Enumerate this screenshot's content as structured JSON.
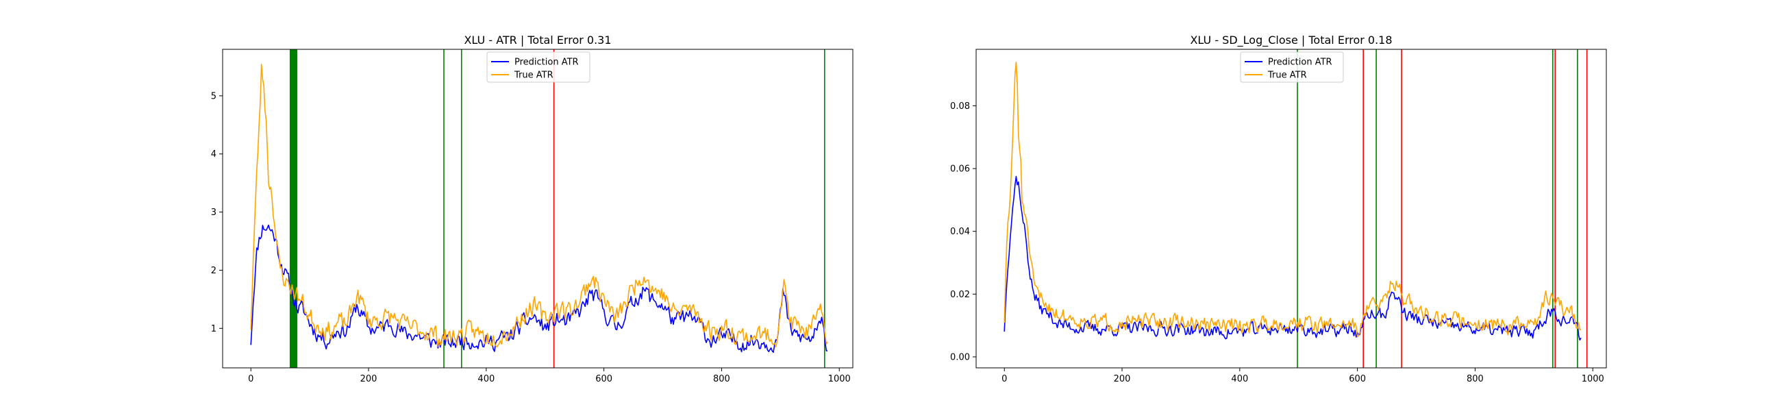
{
  "chart_data": [
    {
      "type": "line",
      "title": "XLU - ATR | Total Error 0.31",
      "xlabel": "",
      "ylabel": "",
      "xlim": [
        -48,
        1023
      ],
      "ylim": [
        0.32,
        5.8
      ],
      "x_ticks": [
        0,
        200,
        400,
        600,
        800,
        1000
      ],
      "y_ticks": [
        1,
        2,
        3,
        4,
        5
      ],
      "legend": {
        "position": "top-center"
      },
      "series": [
        {
          "name": "Prediction ATR",
          "color": "#0000ff",
          "anchors": [
            [
              0,
              0.78
            ],
            [
              5,
              1.7
            ],
            [
              10,
              2.3
            ],
            [
              15,
              2.6
            ],
            [
              20,
              2.75
            ],
            [
              30,
              2.75
            ],
            [
              40,
              2.6
            ],
            [
              50,
              2.2
            ],
            [
              60,
              1.9
            ],
            [
              70,
              1.6
            ],
            [
              80,
              1.35
            ],
            [
              90,
              1.3
            ],
            [
              100,
              1.1
            ],
            [
              110,
              0.95
            ],
            [
              120,
              0.85
            ],
            [
              130,
              0.8
            ],
            [
              140,
              0.9
            ],
            [
              150,
              1.0
            ],
            [
              160,
              0.95
            ],
            [
              170,
              1.1
            ],
            [
              180,
              1.4
            ],
            [
              190,
              1.2
            ],
            [
              200,
              1.0
            ],
            [
              220,
              1.0
            ],
            [
              240,
              1.1
            ],
            [
              260,
              0.9
            ],
            [
              280,
              0.9
            ],
            [
              300,
              0.8
            ],
            [
              320,
              0.75
            ],
            [
              340,
              0.75
            ],
            [
              360,
              0.8
            ],
            [
              380,
              0.8
            ],
            [
              400,
              0.75
            ],
            [
              420,
              0.8
            ],
            [
              440,
              0.85
            ],
            [
              460,
              1.05
            ],
            [
              480,
              1.2
            ],
            [
              500,
              1.0
            ],
            [
              520,
              1.15
            ],
            [
              540,
              1.1
            ],
            [
              560,
              1.3
            ],
            [
              580,
              1.6
            ],
            [
              600,
              1.3
            ],
            [
              620,
              1.0
            ],
            [
              640,
              1.3
            ],
            [
              660,
              1.6
            ],
            [
              670,
              1.65
            ],
            [
              680,
              1.5
            ],
            [
              700,
              1.4
            ],
            [
              720,
              1.1
            ],
            [
              740,
              1.2
            ],
            [
              760,
              1.1
            ],
            [
              780,
              0.8
            ],
            [
              800,
              0.85
            ],
            [
              820,
              0.8
            ],
            [
              840,
              0.75
            ],
            [
              860,
              0.8
            ],
            [
              880,
              0.75
            ],
            [
              895,
              0.8
            ],
            [
              905,
              1.65
            ],
            [
              915,
              1.0
            ],
            [
              930,
              0.85
            ],
            [
              950,
              0.8
            ],
            [
              970,
              1.05
            ],
            [
              980,
              0.7
            ]
          ],
          "amplitude": 0.17,
          "seed": 11,
          "x_range": [
            0,
            980
          ]
        },
        {
          "name": "True ATR",
          "color": "#ffa500",
          "anchors": [
            [
              0,
              1.05
            ],
            [
              5,
              2.5
            ],
            [
              10,
              3.6
            ],
            [
              15,
              4.7
            ],
            [
              18,
              5.45
            ],
            [
              22,
              5.2
            ],
            [
              27,
              4.4
            ],
            [
              30,
              3.6
            ],
            [
              35,
              3.4
            ],
            [
              40,
              2.9
            ],
            [
              45,
              2.3
            ],
            [
              50,
              2.0
            ],
            [
              60,
              1.8
            ],
            [
              70,
              1.7
            ],
            [
              80,
              1.55
            ],
            [
              90,
              1.4
            ],
            [
              100,
              1.2
            ],
            [
              110,
              1.1
            ],
            [
              120,
              1.05
            ],
            [
              130,
              0.95
            ],
            [
              140,
              1.0
            ],
            [
              150,
              1.1
            ],
            [
              160,
              1.05
            ],
            [
              170,
              1.25
            ],
            [
              180,
              1.6
            ],
            [
              190,
              1.4
            ],
            [
              200,
              1.15
            ],
            [
              220,
              1.15
            ],
            [
              240,
              1.2
            ],
            [
              260,
              1.05
            ],
            [
              280,
              1.0
            ],
            [
              300,
              0.95
            ],
            [
              320,
              0.85
            ],
            [
              340,
              0.85
            ],
            [
              360,
              0.9
            ],
            [
              380,
              0.95
            ],
            [
              400,
              0.85
            ],
            [
              420,
              0.9
            ],
            [
              440,
              0.95
            ],
            [
              460,
              1.2
            ],
            [
              480,
              1.4
            ],
            [
              500,
              1.15
            ],
            [
              520,
              1.35
            ],
            [
              540,
              1.3
            ],
            [
              560,
              1.5
            ],
            [
              580,
              1.9
            ],
            [
              600,
              1.5
            ],
            [
              620,
              1.15
            ],
            [
              640,
              1.5
            ],
            [
              660,
              1.9
            ],
            [
              670,
              1.95
            ],
            [
              680,
              1.7
            ],
            [
              700,
              1.6
            ],
            [
              720,
              1.25
            ],
            [
              740,
              1.35
            ],
            [
              760,
              1.25
            ],
            [
              780,
              0.95
            ],
            [
              800,
              1.0
            ],
            [
              820,
              0.95
            ],
            [
              840,
              0.85
            ],
            [
              860,
              0.9
            ],
            [
              880,
              0.85
            ],
            [
              895,
              0.9
            ],
            [
              905,
              1.85
            ],
            [
              915,
              1.15
            ],
            [
              930,
              1.0
            ],
            [
              950,
              0.95
            ],
            [
              970,
              1.25
            ],
            [
              980,
              0.8
            ]
          ],
          "amplitude": 0.2,
          "seed": 23,
          "x_range": [
            0,
            980
          ]
        }
      ],
      "vlines": [
        {
          "x": 66,
          "x2": 79,
          "color": "#008000"
        },
        {
          "x": 328,
          "color": "#008000"
        },
        {
          "x": 358,
          "color": "#008000"
        },
        {
          "x": 515,
          "color": "#ff0000"
        },
        {
          "x": 975,
          "color": "#008000"
        }
      ]
    },
    {
      "type": "line",
      "title": "XLU - SD_Log_Close | Total Error 0.18",
      "xlabel": "",
      "ylabel": "",
      "xlim": [
        -48,
        1023
      ],
      "ylim": [
        -0.0035,
        0.098
      ],
      "x_ticks": [
        0,
        200,
        400,
        600,
        800,
        1000
      ],
      "y_ticks": [
        0.0,
        0.02,
        0.04,
        0.06,
        0.08
      ],
      "y_tick_format": "0.00",
      "legend": {
        "position": "top-center"
      },
      "series": [
        {
          "name": "Prediction ATR",
          "color": "#0000ff",
          "anchors": [
            [
              0,
              0.009
            ],
            [
              5,
              0.028
            ],
            [
              10,
              0.04
            ],
            [
              15,
              0.05
            ],
            [
              20,
              0.057
            ],
            [
              25,
              0.055
            ],
            [
              30,
              0.045
            ],
            [
              35,
              0.04
            ],
            [
              40,
              0.032
            ],
            [
              45,
              0.025
            ],
            [
              50,
              0.02
            ],
            [
              60,
              0.016
            ],
            [
              70,
              0.014
            ],
            [
              80,
              0.013
            ],
            [
              90,
              0.011
            ],
            [
              100,
              0.01
            ],
            [
              150,
              0.009
            ],
            [
              200,
              0.009
            ],
            [
              250,
              0.009
            ],
            [
              300,
              0.009
            ],
            [
              350,
              0.008
            ],
            [
              400,
              0.008
            ],
            [
              450,
              0.009
            ],
            [
              500,
              0.009
            ],
            [
              550,
              0.008
            ],
            [
              590,
              0.009
            ],
            [
              600,
              0.007
            ],
            [
              610,
              0.01
            ],
            [
              620,
              0.014
            ],
            [
              640,
              0.013
            ],
            [
              650,
              0.015
            ],
            [
              660,
              0.021
            ],
            [
              670,
              0.018
            ],
            [
              680,
              0.014
            ],
            [
              700,
              0.012
            ],
            [
              750,
              0.01
            ],
            [
              800,
              0.009
            ],
            [
              850,
              0.008
            ],
            [
              900,
              0.008
            ],
            [
              920,
              0.013
            ],
            [
              930,
              0.015
            ],
            [
              950,
              0.012
            ],
            [
              970,
              0.01
            ],
            [
              980,
              0.006
            ]
          ],
          "amplitude": 0.0025,
          "seed": 37,
          "x_range": [
            0,
            980
          ]
        },
        {
          "name": "True ATR",
          "color": "#ffa500",
          "anchors": [
            [
              0,
              0.012
            ],
            [
              5,
              0.04
            ],
            [
              10,
              0.05
            ],
            [
              15,
              0.075
            ],
            [
              18,
              0.09
            ],
            [
              21,
              0.093
            ],
            [
              24,
              0.07
            ],
            [
              28,
              0.062
            ],
            [
              30,
              0.05
            ],
            [
              35,
              0.047
            ],
            [
              40,
              0.038
            ],
            [
              45,
              0.03
            ],
            [
              50,
              0.022
            ],
            [
              60,
              0.019
            ],
            [
              70,
              0.017
            ],
            [
              80,
              0.016
            ],
            [
              90,
              0.014
            ],
            [
              100,
              0.013
            ],
            [
              150,
              0.011
            ],
            [
              200,
              0.011
            ],
            [
              250,
              0.011
            ],
            [
              300,
              0.011
            ],
            [
              350,
              0.01
            ],
            [
              400,
              0.01
            ],
            [
              450,
              0.011
            ],
            [
              500,
              0.011
            ],
            [
              550,
              0.01
            ],
            [
              590,
              0.011
            ],
            [
              600,
              0.008
            ],
            [
              610,
              0.013
            ],
            [
              620,
              0.017
            ],
            [
              640,
              0.016
            ],
            [
              650,
              0.02
            ],
            [
              660,
              0.026
            ],
            [
              670,
              0.022
            ],
            [
              680,
              0.018
            ],
            [
              700,
              0.015
            ],
            [
              750,
              0.012
            ],
            [
              800,
              0.011
            ],
            [
              850,
              0.01
            ],
            [
              900,
              0.01
            ],
            [
              920,
              0.018
            ],
            [
              930,
              0.02
            ],
            [
              950,
              0.015
            ],
            [
              970,
              0.013
            ],
            [
              980,
              0.008
            ]
          ],
          "amplitude": 0.003,
          "seed": 51,
          "x_range": [
            0,
            980
          ]
        }
      ],
      "vlines": [
        {
          "x": 498,
          "color": "#008000"
        },
        {
          "x": 610,
          "color": "#ff0000"
        },
        {
          "x": 632,
          "color": "#008000"
        },
        {
          "x": 675,
          "color": "#ff0000"
        },
        {
          "x": 932,
          "color": "#008000"
        },
        {
          "x": 936,
          "color": "#ff0000"
        },
        {
          "x": 974,
          "color": "#008000"
        },
        {
          "x": 990,
          "color": "#ff0000"
        }
      ]
    }
  ]
}
